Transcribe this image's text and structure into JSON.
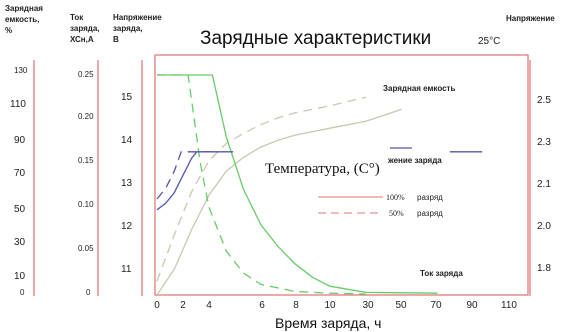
{
  "chart_data": {
    "type": "line",
    "title": "Зарядные характеристики",
    "temperature_label": "25°C",
    "xlabel": "Время заряда, ч",
    "x_ticks": [
      "0",
      "2",
      "4",
      "6",
      "8",
      "10",
      "30",
      "50",
      "70",
      "90",
      "110"
    ],
    "axes": {
      "capacity": {
        "header": [
          "Зарядная",
          "емкость,",
          "%"
        ],
        "ticks": [
          "130",
          "110",
          "90",
          "70",
          "50",
          "30",
          "10",
          "0"
        ]
      },
      "current": {
        "header": [
          "Ток",
          "заряда,",
          "ХСн,А"
        ],
        "ticks": [
          "0.25",
          "0.20",
          "0.15",
          "0.10",
          "0.05",
          "0"
        ]
      },
      "voltage_cell": {
        "header": [
          "Напряжение",
          "заряда,",
          "В"
        ],
        "ticks": [
          "15",
          "14",
          "13",
          "12",
          "11"
        ]
      },
      "voltage_right": {
        "header": [
          "Напряжение"
        ],
        "ticks": [
          "2.5",
          "2.3",
          "2.1",
          "2.0",
          "1.8"
        ]
      }
    },
    "annotations": {
      "capacity": "Зарядная емкость",
      "voltage": "жение заряда",
      "current": "Ток заряда"
    },
    "overlay_label": "Температура, (С°)",
    "legend": [
      {
        "pct": "100%",
        "text": "разряд",
        "style": "solid"
      },
      {
        "pct": "50%",
        "text": "разряд",
        "style": "dashed"
      }
    ],
    "colors": {
      "frame": "#e07070",
      "capacity": "#c8c8b0",
      "current": "#66cc66",
      "voltage": "#5555aa"
    },
    "series": [
      {
        "key": "capacity_100",
        "style": "solid",
        "color": "#c8c8b0",
        "points": [
          [
            0,
            0
          ],
          [
            1,
            15
          ],
          [
            2,
            38
          ],
          [
            3,
            58
          ],
          [
            4,
            72
          ],
          [
            5,
            80
          ],
          [
            6,
            86
          ],
          [
            7,
            90
          ],
          [
            8,
            93
          ],
          [
            9,
            95
          ],
          [
            10,
            97
          ],
          [
            30,
            101
          ],
          [
            50,
            108
          ]
        ]
      },
      {
        "key": "capacity_50",
        "style": "dashed",
        "color": "#c8c8b0",
        "points": [
          [
            0,
            8
          ],
          [
            1,
            35
          ],
          [
            2,
            60
          ],
          [
            3,
            78
          ],
          [
            4,
            88
          ],
          [
            5,
            94
          ],
          [
            6,
            99
          ],
          [
            7,
            103
          ],
          [
            8,
            106
          ],
          [
            10,
            110
          ],
          [
            30,
            115
          ]
        ]
      },
      {
        "key": "current_100",
        "style": "solid",
        "color": "#66cc66",
        "points": [
          [
            0,
            0.25
          ],
          [
            3.2,
            0.25
          ],
          [
            4,
            0.18
          ],
          [
            5,
            0.12
          ],
          [
            6,
            0.08
          ],
          [
            7,
            0.055
          ],
          [
            8,
            0.035
          ],
          [
            9,
            0.02
          ],
          [
            10,
            0.01
          ],
          [
            30,
            0.003
          ],
          [
            70,
            0.002
          ]
        ]
      },
      {
        "key": "current_50",
        "style": "dashed",
        "color": "#66cc66",
        "points": [
          [
            0,
            0.25
          ],
          [
            1.8,
            0.25
          ],
          [
            2.5,
            0.15
          ],
          [
            3,
            0.1
          ],
          [
            4,
            0.05
          ],
          [
            5,
            0.025
          ],
          [
            6,
            0.012
          ],
          [
            8,
            0.004
          ],
          [
            10,
            0.002
          ],
          [
            30,
            0.001
          ]
        ]
      },
      {
        "key": "voltage_100",
        "style": "solid",
        "color": "#5555aa",
        "points": [
          [
            0,
            12.4
          ],
          [
            0.5,
            12.55
          ],
          [
            1,
            12.8
          ],
          [
            1.5,
            13.2
          ],
          [
            2,
            13.6
          ],
          [
            2.3,
            13.75
          ],
          [
            4.4,
            13.75
          ]
        ]
      },
      {
        "key": "voltage_50",
        "style": "dashed",
        "color": "#5555aa",
        "points": [
          [
            0,
            12.65
          ],
          [
            0.5,
            12.9
          ],
          [
            1,
            13.3
          ],
          [
            1.4,
            13.75
          ],
          [
            3.5,
            13.75
          ]
        ]
      },
      {
        "key": "voltage_100_right",
        "style": "solid",
        "color": "#5555aa",
        "points": [
          [
            77,
            13.75
          ],
          [
            95,
            13.75
          ]
        ]
      }
    ]
  }
}
